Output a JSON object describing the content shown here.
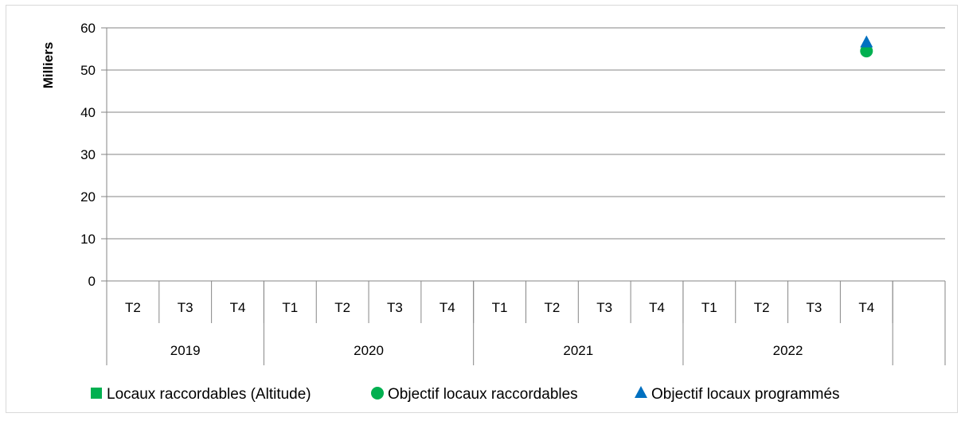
{
  "chart_data": {
    "type": "scatter",
    "ylabel": "Milliers",
    "ylim": [
      0,
      60
    ],
    "yticks": [
      0,
      10,
      20,
      30,
      40,
      50,
      60
    ],
    "grid": true,
    "legend_position": "bottom",
    "categories": [
      {
        "year": "2019",
        "quarter": "T2"
      },
      {
        "year": "2019",
        "quarter": "T3"
      },
      {
        "year": "2019",
        "quarter": "T4"
      },
      {
        "year": "2020",
        "quarter": "T1"
      },
      {
        "year": "2020",
        "quarter": "T2"
      },
      {
        "year": "2020",
        "quarter": "T3"
      },
      {
        "year": "2020",
        "quarter": "T4"
      },
      {
        "year": "2021",
        "quarter": "T1"
      },
      {
        "year": "2021",
        "quarter": "T2"
      },
      {
        "year": "2021",
        "quarter": "T3"
      },
      {
        "year": "2021",
        "quarter": "T4"
      },
      {
        "year": "2022",
        "quarter": "T1"
      },
      {
        "year": "2022",
        "quarter": "T2"
      },
      {
        "year": "2022",
        "quarter": "T3"
      },
      {
        "year": "2022",
        "quarter": "T4"
      },
      {
        "year": "",
        "quarter": ""
      }
    ],
    "years": [
      "2019",
      "2020",
      "2021",
      "2022"
    ],
    "series": [
      {
        "name": "Locaux raccordables (Altitude)",
        "marker": "square",
        "color": "#00b050",
        "values": []
      },
      {
        "name": "Objectif locaux raccordables",
        "marker": "circle",
        "color": "#00b050",
        "values": [
          {
            "year": "2022",
            "quarter": "T4",
            "y": 54.5
          }
        ]
      },
      {
        "name": "Objectif locaux programmés",
        "marker": "triangle",
        "color": "#0070c0",
        "values": [
          {
            "year": "2022",
            "quarter": "T4",
            "y": 56.5
          }
        ]
      }
    ]
  }
}
